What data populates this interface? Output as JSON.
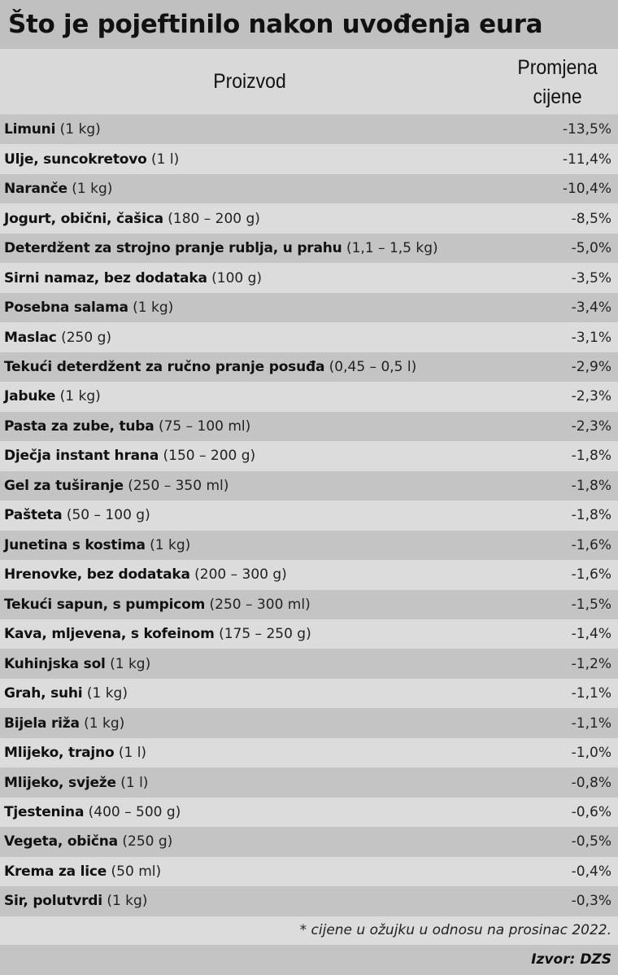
{
  "title": "Što je pojeftinilo nakon uvođenja eura",
  "header": {
    "product": "Proizvod",
    "change_line1": "Promjena",
    "change_line2": "cijene"
  },
  "rows": [
    {
      "name": "Limuni",
      "unit": "(1 kg)",
      "value": "-13,5%"
    },
    {
      "name": "Ulje, suncokretovo",
      "unit": "(1 l)",
      "value": "-11,4%"
    },
    {
      "name": "Naranče",
      "unit": "(1 kg)",
      "value": "-10,4%"
    },
    {
      "name": "Jogurt, obični, čašica",
      "unit": "(180 – 200 g)",
      "value": "-8,5%"
    },
    {
      "name": "Deterdžent za strojno pranje rublja, u prahu",
      "unit": "(1,1 – 1,5 kg)",
      "value": "-5,0%"
    },
    {
      "name": "Sirni namaz, bez dodataka",
      "unit": "(100 g)",
      "value": "-3,5%"
    },
    {
      "name": "Posebna salama",
      "unit": "(1 kg)",
      "value": "-3,4%"
    },
    {
      "name": "Maslac",
      "unit": "(250 g)",
      "value": "-3,1%"
    },
    {
      "name": "Tekući deterdžent za ručno pranje posuđa",
      "unit": "(0,45 – 0,5 l)",
      "value": "-2,9%"
    },
    {
      "name": "Jabuke",
      "unit": "(1 kg)",
      "value": "-2,3%"
    },
    {
      "name": "Pasta za zube, tuba",
      "unit": "(75 – 100 ml)",
      "value": "-2,3%"
    },
    {
      "name": "Dječja instant hrana",
      "unit": "(150 – 200 g)",
      "value": "-1,8%"
    },
    {
      "name": "Gel za tuširanje",
      "unit": "(250 – 350 ml)",
      "value": "-1,8%"
    },
    {
      "name": "Pašteta",
      "unit": "(50 – 100 g)",
      "value": "-1,8%"
    },
    {
      "name": "Junetina s kostima",
      "unit": "(1 kg)",
      "value": "-1,6%"
    },
    {
      "name": "Hrenovke, bez dodataka",
      "unit": "(200 – 300 g)",
      "value": "-1,6%"
    },
    {
      "name": "Tekući sapun, s pumpicom",
      "unit": "(250 – 300 ml)",
      "value": "-1,5%"
    },
    {
      "name": "Kava, mljevena, s kofeinom",
      "unit": "(175 – 250 g)",
      "value": "-1,4%"
    },
    {
      "name": "Kuhinjska sol",
      "unit": "(1 kg)",
      "value": "-1,2%"
    },
    {
      "name": "Grah, suhi",
      "unit": "(1 kg)",
      "value": "-1,1%"
    },
    {
      "name": "Bijela riža",
      "unit": "(1 kg)",
      "value": "-1,1%"
    },
    {
      "name": "Mlijeko, trajno",
      "unit": "(1 l)",
      "value": "-1,0%"
    },
    {
      "name": "Mlijeko, svježe",
      "unit": "(1 l)",
      "value": "-0,8%"
    },
    {
      "name": "Tjestenina",
      "unit": "(400 – 500 g)",
      "value": "-0,6%"
    },
    {
      "name": "Vegeta, obična",
      "unit": "(250 g)",
      "value": "-0,5%"
    },
    {
      "name": "Krema za lice",
      "unit": "(50 ml)",
      "value": "-0,4%"
    },
    {
      "name": "Sir, polutvrdi",
      "unit": "(1 kg)",
      "value": "-0,3%"
    }
  ],
  "footnote": "* cijene u ožujku u odnosu na prosinac 2022.",
  "source": "Izvor: DZS",
  "colors": {
    "title_bg": "#c0c0c0",
    "header_bg": "#d9d9d9",
    "row_dark": "#c4c4c4",
    "row_light": "#dcdcdc",
    "text": "#111111"
  }
}
